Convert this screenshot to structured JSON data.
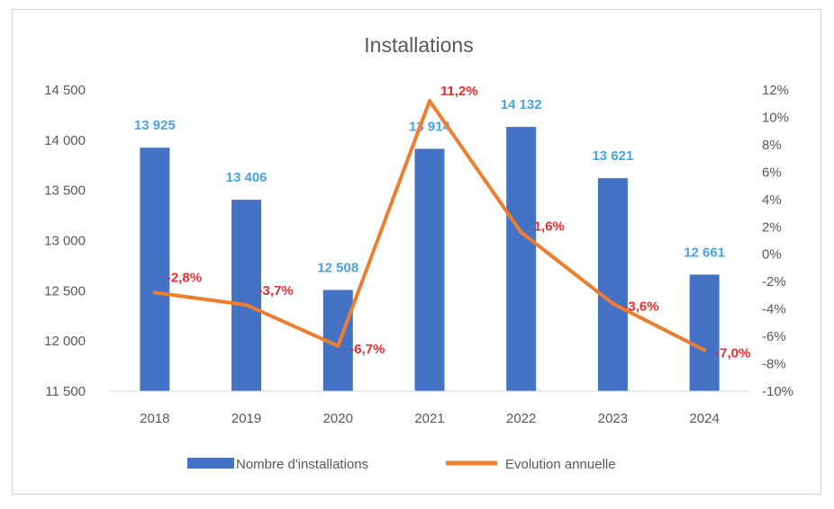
{
  "chart_data": {
    "type": "bar+line",
    "title": "Installations",
    "categories": [
      "2018",
      "2019",
      "2020",
      "2021",
      "2022",
      "2023",
      "2024"
    ],
    "series": [
      {
        "name": "Nombre d'installations",
        "type": "bar",
        "axis": "left",
        "values": [
          13925,
          13406,
          12508,
          13914,
          14132,
          13621,
          12661
        ],
        "labels": [
          "13 925",
          "13 406",
          "12 508",
          "13 914",
          "14 132",
          "13 621",
          "12 661"
        ],
        "color": "#4472c4"
      },
      {
        "name": "Evolution annuelle",
        "type": "line",
        "axis": "right",
        "values": [
          -2.8,
          -3.7,
          -6.7,
          11.2,
          1.6,
          -3.6,
          -7.0
        ],
        "labels": [
          "-2,8%",
          "-3,7%",
          "-6,7%",
          "11,2%",
          "1,6%",
          "-3,6%",
          "-7,0%"
        ],
        "color": "#ed7d31"
      }
    ],
    "left_axis": {
      "ylim": [
        11500,
        14500
      ],
      "ticks": [
        11500,
        12000,
        12500,
        13000,
        13500,
        14000,
        14500
      ],
      "tick_labels": [
        "11 500",
        "12 000",
        "12 500",
        "13 000",
        "13 500",
        "14 000",
        "14 500"
      ]
    },
    "right_axis": {
      "ylim": [
        -10,
        12
      ],
      "ticks": [
        -10,
        -8,
        -6,
        -4,
        -2,
        0,
        2,
        4,
        6,
        8,
        10,
        12
      ],
      "tick_labels": [
        "-10%",
        "-8%",
        "-6%",
        "-4%",
        "-2%",
        "0%",
        "2%",
        "4%",
        "6%",
        "8%",
        "10%",
        "12%"
      ]
    },
    "grid": false,
    "legend_position": "bottom"
  },
  "colors": {
    "bar_label": "#4aa3e0",
    "line_label": "#e03030",
    "axis_text": "#595959"
  }
}
